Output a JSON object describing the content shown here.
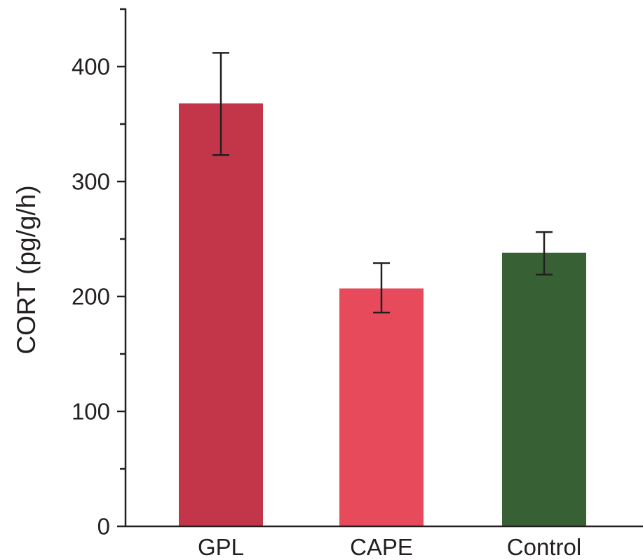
{
  "chart_data": {
    "type": "bar",
    "title": "",
    "xlabel": "",
    "ylabel": "CORT (pg/g/h)",
    "categories": [
      "GPL",
      "CAPE",
      "Control"
    ],
    "series": [
      {
        "values": [
          368,
          207,
          238
        ],
        "error_low": [
          323,
          186,
          219
        ],
        "error_high": [
          412,
          229,
          256
        ],
        "colors": [
          "#c3364a",
          "#e64a5b",
          "#376134"
        ]
      }
    ],
    "ylim": [
      0,
      450
    ],
    "yticks_major": [
      0,
      100,
      200,
      300,
      400
    ],
    "yticks_major_labels": [
      "0",
      "100",
      "200",
      "300",
      "400"
    ],
    "yticks_minor": [
      50,
      150,
      250,
      350,
      450
    ],
    "grid": false,
    "legend": "none"
  }
}
